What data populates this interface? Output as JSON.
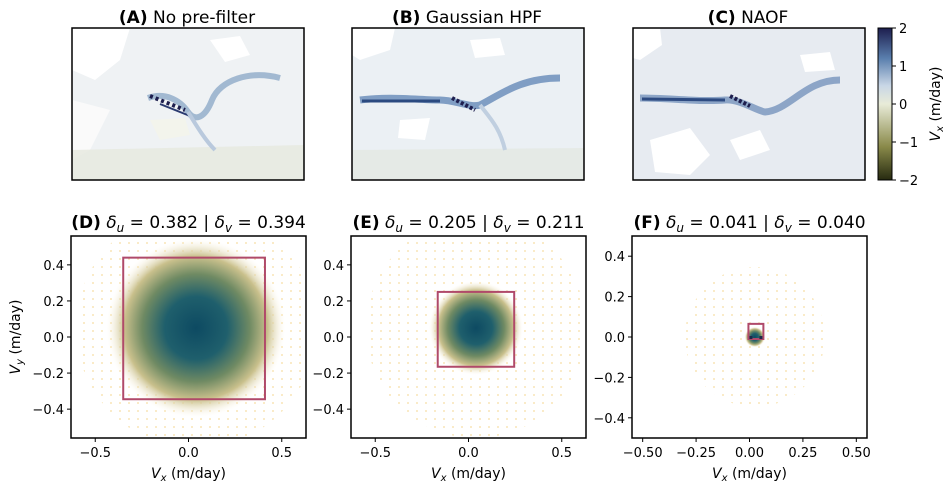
{
  "top_panels": [
    {
      "letter": "(A)",
      "name": "No pre-filter"
    },
    {
      "letter": "(B)",
      "name": "Gaussian HPF"
    },
    {
      "letter": "(C)",
      "name": "NAOF"
    }
  ],
  "colorbar": {
    "label_main": "V",
    "label_sub": "x",
    "label_unit": " (m/day)",
    "ticks": [
      "2",
      "1",
      "0",
      "−1",
      "−2"
    ],
    "tick_values": [
      2,
      1,
      0,
      -1,
      -2
    ],
    "range": [
      -2,
      2
    ],
    "colors": [
      "#262a10",
      "#8a8a4a",
      "#e8ebd8",
      "#c9d7e6",
      "#5a7fae",
      "#1d1e4e"
    ]
  },
  "chart_data": [
    {
      "type": "heatmap",
      "letter": "(D)",
      "title_du": "0.382",
      "title_dv": "0.394",
      "xlabel_main": "V",
      "xlabel_sub": "x",
      "xlabel_unit": " (m/day)",
      "ylabel_main": "V",
      "ylabel_sub": "y",
      "ylabel_unit": " (m/day)",
      "xlim": [
        -0.63,
        0.63
      ],
      "ylim": [
        -0.56,
        0.56
      ],
      "xticks": [
        -0.5,
        0.0,
        0.5
      ],
      "xtick_labels": [
        "−0.5",
        "0.0",
        "0.5"
      ],
      "yticks": [
        -0.4,
        -0.2,
        0.0,
        0.2,
        0.4
      ],
      "ytick_labels": [
        "−0.4",
        "−0.2",
        "0.0",
        "0.2",
        "0.4"
      ],
      "center": [
        0.04,
        0.05
      ],
      "sigma": 0.2,
      "box": {
        "x0": -0.35,
        "x1": 0.41,
        "y0": -0.345,
        "y1": 0.44
      }
    },
    {
      "type": "heatmap",
      "letter": "(E)",
      "title_du": "0.205",
      "title_dv": "0.211",
      "xlabel_main": "V",
      "xlabel_sub": "x",
      "xlabel_unit": " (m/day)",
      "xlim": [
        -0.63,
        0.63
      ],
      "ylim": [
        -0.56,
        0.56
      ],
      "xticks": [
        -0.5,
        0.0,
        0.5
      ],
      "xtick_labels": [
        "−0.5",
        "0.0",
        "0.5"
      ],
      "yticks": [
        -0.4,
        -0.2,
        0.0,
        0.2,
        0.4
      ],
      "ytick_labels": [
        "−0.4",
        "−0.2",
        "0.0",
        "0.2",
        "0.4"
      ],
      "center": [
        0.04,
        0.05
      ],
      "sigma": 0.105,
      "box": {
        "x0": -0.165,
        "x1": 0.245,
        "y0": -0.165,
        "y1": 0.25
      }
    },
    {
      "type": "heatmap",
      "letter": "(F)",
      "title_du": "0.041",
      "title_dv": "0.040",
      "xlabel_main": "V",
      "xlabel_sub": "x",
      "xlabel_unit": " (m/day)",
      "xlim": [
        -0.55,
        0.55
      ],
      "ylim": [
        -0.5,
        0.5
      ],
      "xticks": [
        -0.5,
        -0.25,
        0.0,
        0.25,
        0.5
      ],
      "xtick_labels": [
        "−0.50",
        "−0.25",
        "0.00",
        "0.25",
        "0.50"
      ],
      "yticks": [
        -0.4,
        -0.2,
        0.0,
        0.2,
        0.4
      ],
      "ytick_labels": [
        "−0.4",
        "−0.2",
        "0.0",
        "0.2",
        "0.4"
      ],
      "center": [
        0.025,
        0.0
      ],
      "sigma": 0.02,
      "box": {
        "x0": -0.005,
        "x1": 0.065,
        "y0": -0.01,
        "y1": 0.065
      }
    }
  ]
}
